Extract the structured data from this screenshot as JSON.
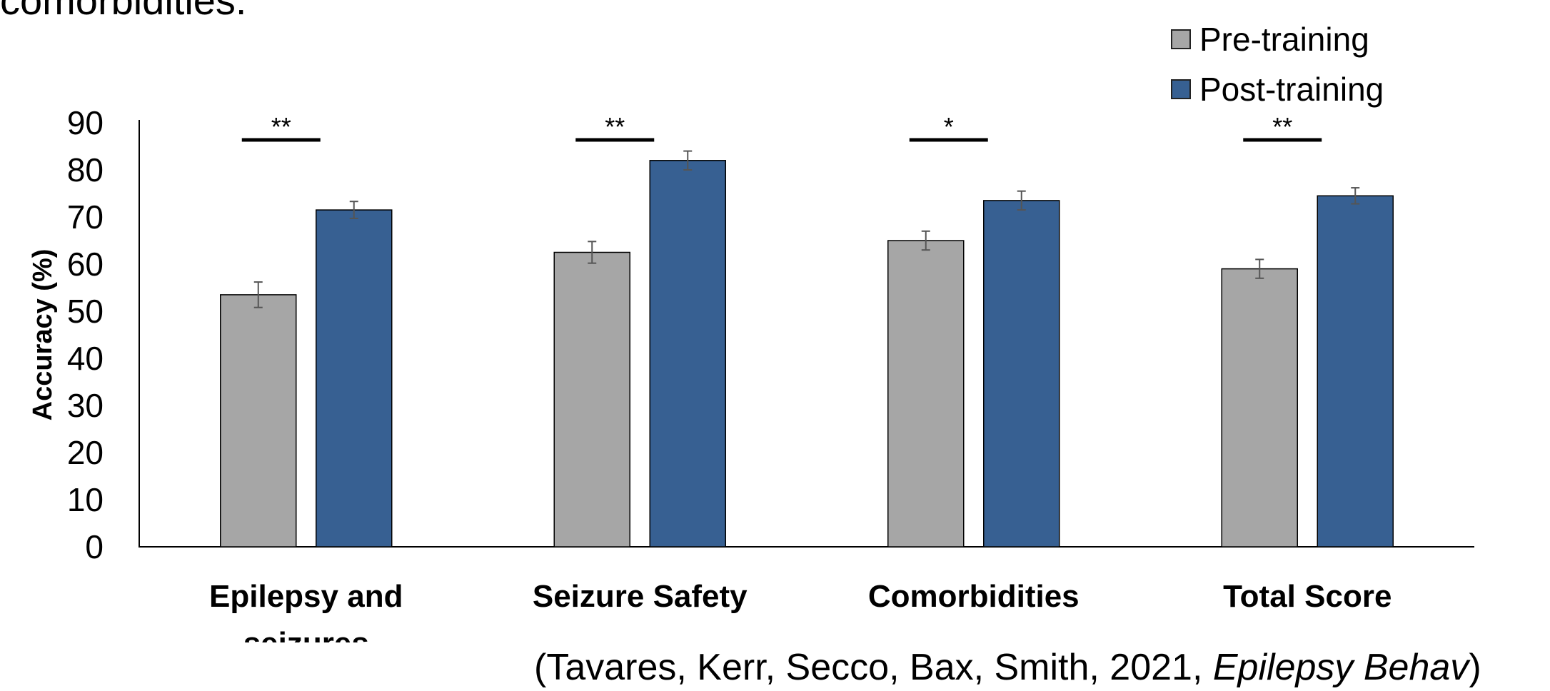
{
  "top_text": "comorbidities.",
  "chart_data": {
    "type": "bar",
    "categories": [
      [
        "Epilepsy and",
        "seizures"
      ],
      [
        "Seizure Safety"
      ],
      [
        "Comorbidities"
      ],
      [
        "Total Score"
      ]
    ],
    "series": [
      {
        "name": "Pre-training",
        "values": [
          53.5,
          62.5,
          65,
          59
        ],
        "errors": [
          2.7,
          2.3,
          2,
          2
        ],
        "color": "#a6a6a6"
      },
      {
        "name": "Post-training",
        "values": [
          71.5,
          82,
          73.5,
          74.5
        ],
        "errors": [
          1.8,
          2,
          2,
          1.7
        ],
        "color": "#376092"
      }
    ],
    "significance": [
      "**",
      "**",
      "*",
      "**"
    ],
    "ylabel": "Accuracy (%)",
    "ylim": [
      0,
      90
    ],
    "yticks": [
      "0",
      "10",
      "20",
      "30",
      "40",
      "50",
      "60",
      "70",
      "80",
      "90"
    ],
    "grid": false,
    "legend": "top-right"
  },
  "citation": {
    "prefix": "(Tavares, Kerr, Secco, Bax, Smith, 2021, ",
    "journal": "Epilepsy Behav",
    "suffix": ")"
  }
}
